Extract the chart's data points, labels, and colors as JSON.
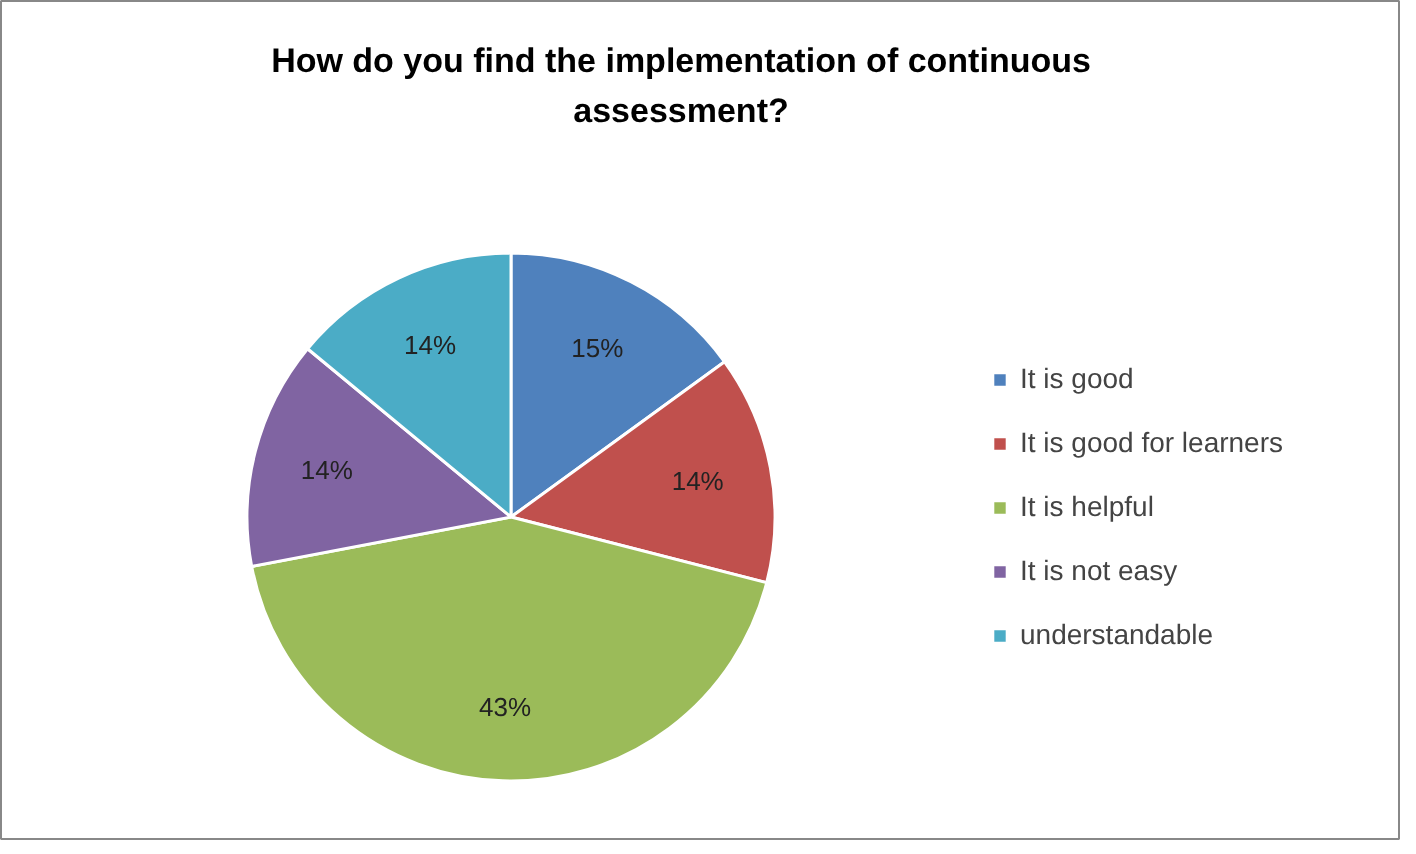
{
  "chart_data": {
    "type": "pie",
    "title": "How do you find the implementation of continuous assessment?",
    "categories": [
      "It is good",
      "It is good for learners",
      "It is helpful",
      "It is not easy",
      "understandable"
    ],
    "values": [
      15,
      14,
      43,
      14,
      14
    ],
    "value_labels": [
      "15%",
      "14%",
      "43%",
      "14%",
      "14%"
    ],
    "colors": [
      "#4f81bd",
      "#c0504d",
      "#9bbb59",
      "#8064a2",
      "#4bacc6"
    ],
    "legend": "right"
  }
}
